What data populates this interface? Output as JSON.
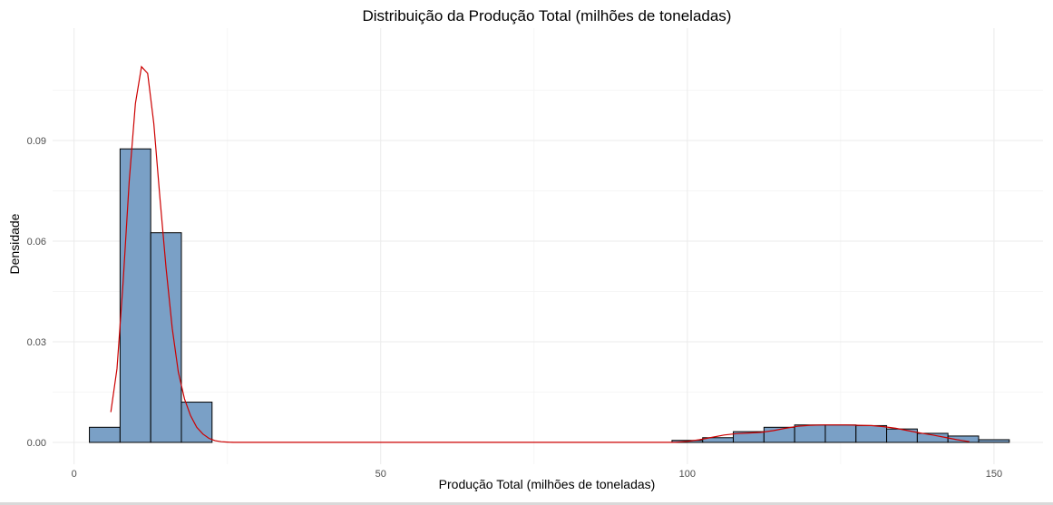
{
  "chart_data": {
    "type": "bar",
    "title": "Distribuição da Produção Total (milhões de toneladas)",
    "xlabel": "Produção Total (milhões de toneladas)",
    "ylabel": "Densidade",
    "xlim": [
      -3.5,
      158
    ],
    "ylim": [
      -0.0065,
      0.1235
    ],
    "x_ticks": [
      {
        "value": 0,
        "label": "0"
      },
      {
        "value": 50,
        "label": "50"
      },
      {
        "value": 100,
        "label": "100"
      },
      {
        "value": 150,
        "label": "150"
      }
    ],
    "y_ticks": [
      {
        "value": 0,
        "label": "0.00"
      },
      {
        "value": 0.03,
        "label": "0.03"
      },
      {
        "value": 0.06,
        "label": "0.06"
      },
      {
        "value": 0.09,
        "label": "0.09"
      }
    ],
    "grid": true,
    "colors": {
      "bar_fill": "#7aa0c6",
      "bar_edge": "#000000",
      "density_line": "#cc0000"
    },
    "histogram": {
      "bin_width": 5,
      "bins": [
        {
          "start": 2.5,
          "end": 7.5,
          "density": 0.0045
        },
        {
          "start": 7.5,
          "end": 12.5,
          "density": 0.0875
        },
        {
          "start": 12.5,
          "end": 17.5,
          "density": 0.0625
        },
        {
          "start": 17.5,
          "end": 22.5,
          "density": 0.012
        },
        {
          "start": 97.5,
          "end": 102.5,
          "density": 0.0006
        },
        {
          "start": 102.5,
          "end": 107.5,
          "density": 0.0014
        },
        {
          "start": 107.5,
          "end": 112.5,
          "density": 0.0032
        },
        {
          "start": 112.5,
          "end": 117.5,
          "density": 0.0045
        },
        {
          "start": 117.5,
          "end": 122.5,
          "density": 0.0052
        },
        {
          "start": 122.5,
          "end": 127.5,
          "density": 0.0052
        },
        {
          "start": 127.5,
          "end": 132.5,
          "density": 0.005
        },
        {
          "start": 132.5,
          "end": 137.5,
          "density": 0.004
        },
        {
          "start": 137.5,
          "end": 142.5,
          "density": 0.0027
        },
        {
          "start": 142.5,
          "end": 147.5,
          "density": 0.0019
        },
        {
          "start": 147.5,
          "end": 152.5,
          "density": 0.0008
        }
      ]
    },
    "density_curve": {
      "x": [
        6,
        7,
        8,
        9,
        10,
        11,
        12,
        13,
        14,
        15,
        16,
        17,
        18,
        19,
        20,
        21,
        22,
        23,
        24,
        25,
        26,
        30,
        40,
        60,
        80,
        98,
        100,
        102,
        104,
        106,
        108,
        110,
        112,
        114,
        116,
        118,
        120,
        122,
        124,
        126,
        128,
        130,
        132,
        134,
        136,
        138,
        140,
        142,
        144,
        146
      ],
      "y": [
        0.009,
        0.022,
        0.048,
        0.078,
        0.101,
        0.112,
        0.11,
        0.095,
        0.073,
        0.052,
        0.034,
        0.021,
        0.013,
        0.008,
        0.0045,
        0.0025,
        0.0012,
        0.0005,
        0.0002,
        0.0001,
        0.0,
        0.0,
        0.0,
        0.0,
        0.0,
        0.0,
        0.0003,
        0.0008,
        0.0015,
        0.0022,
        0.0026,
        0.0028,
        0.003,
        0.0035,
        0.0042,
        0.0048,
        0.0051,
        0.0052,
        0.0052,
        0.0052,
        0.0051,
        0.005,
        0.0047,
        0.0042,
        0.0035,
        0.0028,
        0.0022,
        0.0015,
        0.0008,
        0.0002
      ]
    }
  }
}
